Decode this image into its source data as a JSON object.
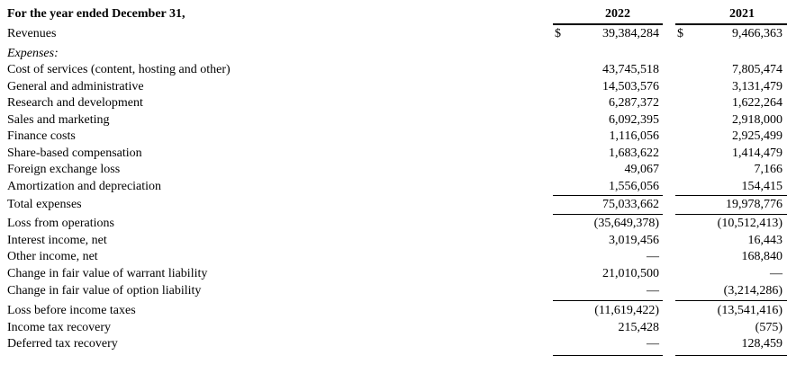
{
  "header": {
    "label": "For the year ended December 31,",
    "year_2022": "2022",
    "year_2021": "2021"
  },
  "currency_symbol": "$",
  "rows": [
    {
      "label": "Revenues",
      "v2022": "39,384,284",
      "v2021": "9,466,363"
    },
    {
      "label": "Expenses:",
      "v2022": "",
      "v2021": ""
    },
    {
      "label": "Cost of services (content, hosting and other)",
      "v2022": "43,745,518",
      "v2021": "7,805,474"
    },
    {
      "label": "General and administrative",
      "v2022": "14,503,576",
      "v2021": "3,131,479"
    },
    {
      "label": "Research and development",
      "v2022": "6,287,372",
      "v2021": "1,622,264"
    },
    {
      "label": "Sales and marketing",
      "v2022": "6,092,395",
      "v2021": "2,918,000"
    },
    {
      "label": "Finance costs",
      "v2022": "1,116,056",
      "v2021": "2,925,499"
    },
    {
      "label": "Share-based compensation",
      "v2022": "1,683,622",
      "v2021": "1,414,479"
    },
    {
      "label": "Foreign exchange loss",
      "v2022": "49,067",
      "v2021": "7,166"
    },
    {
      "label": "Amortization and depreciation",
      "v2022": "1,556,056",
      "v2021": "154,415"
    },
    {
      "label": "Total expenses",
      "v2022": "75,033,662",
      "v2021": "19,978,776"
    },
    {
      "label": "Loss from operations",
      "v2022": "(35,649,378)",
      "v2021": "(10,512,413)"
    },
    {
      "label": "Interest income, net",
      "v2022": "3,019,456",
      "v2021": "16,443"
    },
    {
      "label": "Other income, net",
      "v2022": "—",
      "v2021": "168,840"
    },
    {
      "label": "Change in fair value of warrant liability",
      "v2022": "21,010,500",
      "v2021": "—"
    },
    {
      "label": "Change in fair value of option liability",
      "v2022": "—",
      "v2021": "(3,214,286)"
    },
    {
      "label": "Loss before income taxes",
      "v2022": "(11,619,422)",
      "v2021": "(13,541,416)"
    },
    {
      "label": "Income tax recovery",
      "v2022": "215,428",
      "v2021": "(575)"
    },
    {
      "label": "Deferred tax recovery",
      "v2022": "—",
      "v2021": "128,459"
    }
  ]
}
